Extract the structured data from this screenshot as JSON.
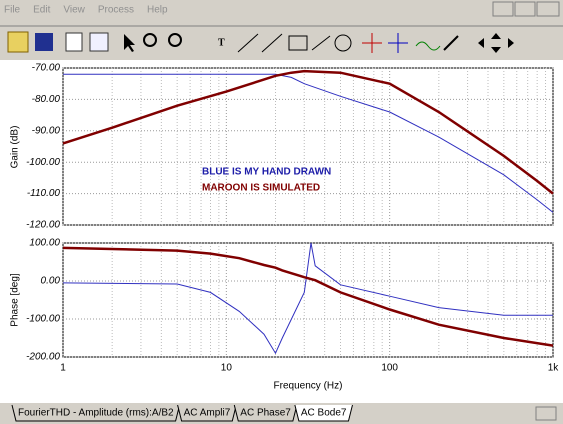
{
  "menu": [
    "File",
    "Edit",
    "View",
    "Process",
    "Help"
  ],
  "tabs": [
    "FourierTHD - Amplitude (rms):A/B2",
    "AC Ampli7",
    "AC Phase7",
    "AC Bode7"
  ],
  "chart_data": [
    {
      "type": "line",
      "log_x": true,
      "grid": true,
      "y_label": "Gain (dB)",
      "annotations": [
        {
          "text": "BLUE IS MY HAND DRAWN",
          "color": "#1c1ca8"
        },
        {
          "text": "MAROON IS SIMULATED",
          "color": "#800000"
        }
      ],
      "x": [
        1,
        2,
        5,
        10,
        20,
        25,
        30,
        50,
        100,
        200,
        500,
        800,
        1000
      ],
      "xlim": [
        1,
        1000
      ],
      "xticks": [
        1,
        10,
        100,
        1000
      ],
      "ylim": [
        -120,
        -70
      ],
      "yticks": [
        {
          "value": -120,
          "label": "-120.00"
        },
        {
          "value": -110,
          "label": "-110.00"
        },
        {
          "value": -100,
          "label": "-100.00"
        },
        {
          "value": -90,
          "label": "-90.00"
        },
        {
          "value": -80,
          "label": "-80.00"
        },
        {
          "value": -70,
          "label": "-70.00"
        }
      ],
      "series": [
        {
          "color": "#3030c0",
          "width": 1,
          "values": [
            -72,
            -72,
            -72,
            -72,
            -72,
            -73,
            -75,
            -79,
            -84,
            -92,
            -104,
            -112,
            -116
          ]
        },
        {
          "color": "#800000",
          "width": 2.5,
          "values": [
            -94,
            -89,
            -82,
            -77.5,
            -72.5,
            -71.5,
            -71,
            -71.5,
            -75,
            -84,
            -98,
            -106,
            -110
          ]
        }
      ]
    },
    {
      "type": "line",
      "log_x": true,
      "grid": true,
      "y_label": "Phase [deg]",
      "x_label": "Frequency (Hz)",
      "x": [
        1,
        5,
        8,
        12,
        17,
        20,
        22,
        30,
        33,
        35,
        50,
        100,
        200,
        500,
        1000
      ],
      "xlim": [
        1,
        1000
      ],
      "xticks": [
        1,
        10,
        100,
        {
          "value": 1000,
          "label": "1k"
        }
      ],
      "ylim": [
        -200,
        100
      ],
      "yticks": [
        {
          "value": -200,
          "label": "-200.00"
        },
        {
          "value": -100,
          "label": "-100.00"
        },
        {
          "value": 0,
          "label": "0.00"
        },
        {
          "value": 100,
          "label": "100.00"
        }
      ],
      "series": [
        {
          "color": "#3030c0",
          "width": 1,
          "values": [
            -5,
            -8,
            -30,
            -80,
            -140,
            -190,
            -150,
            -30,
            100,
            40,
            -10,
            -40,
            -70,
            -90,
            -90
          ]
        },
        {
          "color": "#800000",
          "width": 2.5,
          "values": [
            87,
            80,
            72,
            60,
            42,
            35,
            28,
            10,
            5,
            2,
            -30,
            -75,
            -115,
            -150,
            -170
          ]
        }
      ]
    }
  ]
}
